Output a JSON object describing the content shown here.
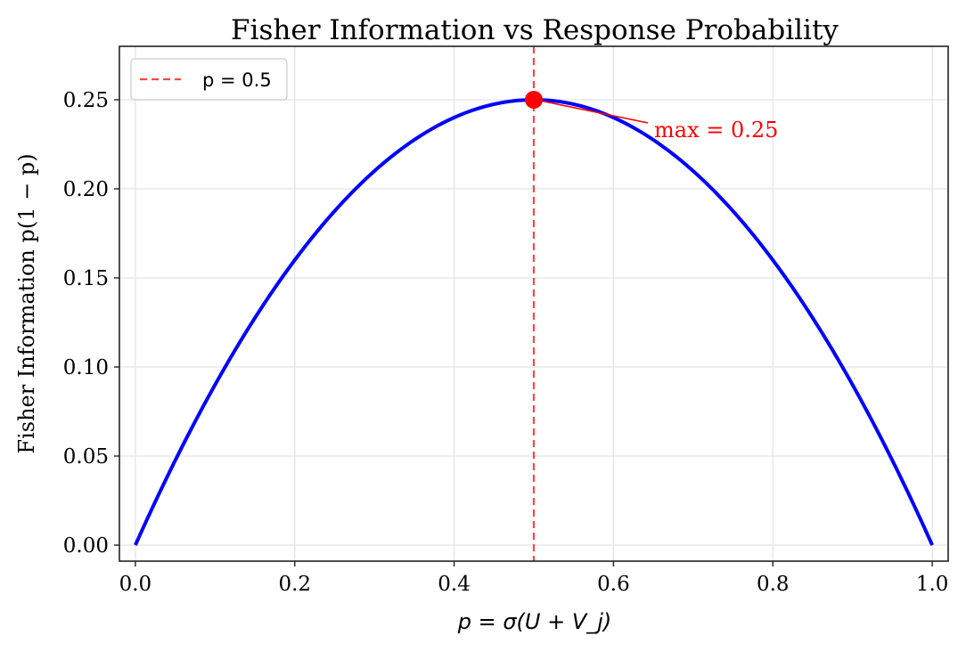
{
  "chart_data": {
    "type": "line",
    "title": "Fisher Information vs Response Probability",
    "xlabel": "p = σ(U + V_j)",
    "ylabel": "Fisher Information p(1 − p)",
    "xlim": [
      -0.02,
      1.02
    ],
    "ylim": [
      -0.009,
      0.28
    ],
    "grid": true,
    "xticks": [
      0.0,
      0.2,
      0.4,
      0.6,
      0.8,
      1.0
    ],
    "xtick_labels": [
      "0.0",
      "0.2",
      "0.4",
      "0.6",
      "0.8",
      "1.0"
    ],
    "yticks": [
      0.0,
      0.05,
      0.1,
      0.15,
      0.2,
      0.25
    ],
    "ytick_labels": [
      "0.00",
      "0.05",
      "0.10",
      "0.15",
      "0.20",
      "0.25"
    ],
    "series": [
      {
        "name": "p(1-p)",
        "function": "p*(1-p)",
        "x_range": [
          0,
          1
        ],
        "color": "#0000ff"
      }
    ],
    "vline": {
      "x": 0.5,
      "label": "p = 0.5",
      "color": "#ff4444",
      "style": "dashed"
    },
    "marker": {
      "x": 0.5,
      "y": 0.25,
      "color": "#ff0000"
    },
    "annotation": {
      "text": "max = 0.25",
      "xy": [
        0.5,
        0.25
      ],
      "xytext": [
        0.65,
        0.23
      ],
      "color": "#ff0000"
    },
    "legend": {
      "placement": "top-left",
      "entries": [
        "p = 0.5"
      ]
    }
  }
}
